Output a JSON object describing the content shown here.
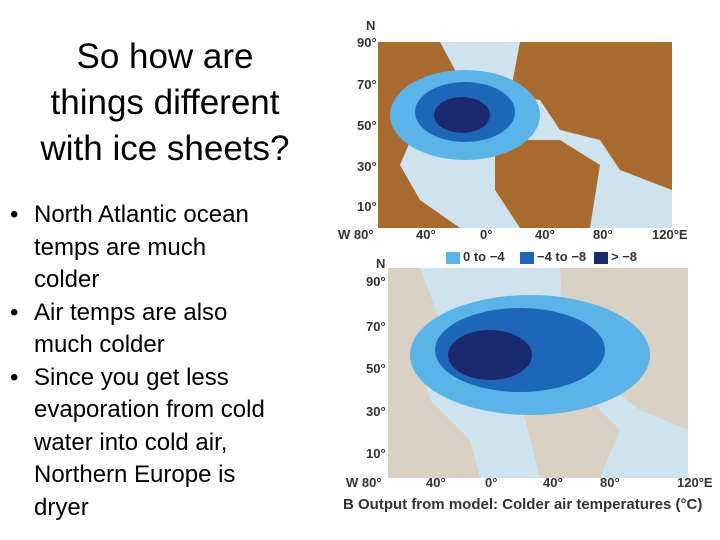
{
  "title_lines": [
    "So how are",
    "things different",
    "with ice sheets?"
  ],
  "bullets": [
    {
      "lines": [
        "North Atlantic ocean",
        "temps are much",
        "colder"
      ]
    },
    {
      "lines": [
        "Air temps are also",
        "much colder"
      ]
    },
    {
      "lines": [
        "Since you get less",
        "evaporation from cold",
        "water into cold air,",
        "Northern Europe is",
        "dryer"
      ]
    }
  ],
  "map_top": {
    "north": "N",
    "lat_labels": [
      "90°",
      "70°",
      "50°",
      "30°",
      "10°"
    ],
    "lon_labels": [
      "W 80°",
      "40°",
      "0°",
      "40°",
      "80°",
      "120°E"
    ],
    "legend": [
      "0 to −4",
      "−4 to −8",
      "> −8"
    ]
  },
  "map_bottom": {
    "north": "N",
    "lat_labels": [
      "90°",
      "70°",
      "50°",
      "30°",
      "10°"
    ],
    "lon_labels": [
      "W 80°",
      "40°",
      "0°",
      "40°",
      "80°",
      "120°E"
    ],
    "caption_letter": "B",
    "caption": "Output from model: Colder air temperatures (°C)"
  }
}
